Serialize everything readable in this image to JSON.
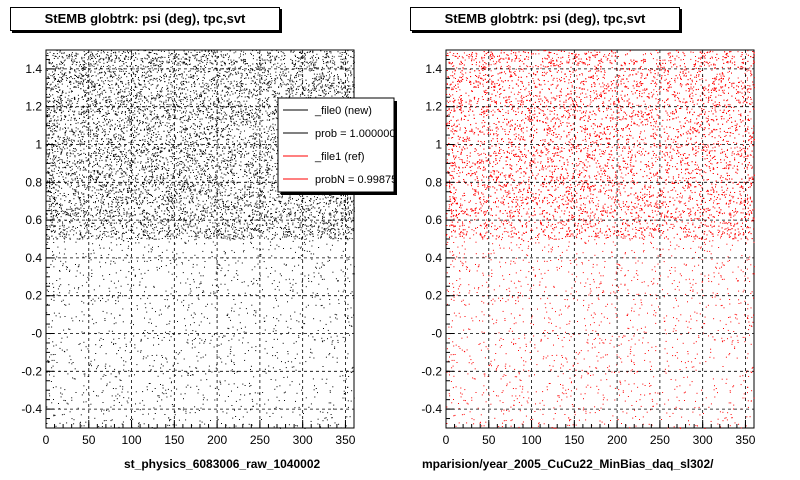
{
  "panels": [
    {
      "title": "StEMB globtrk: psi (deg), tpc,svt",
      "footer": "st_physics_6083006_raw_1040002",
      "marker_color": "#000000",
      "legend": {
        "entries": [
          {
            "label": "_file0 (new)",
            "color": "#000000"
          },
          {
            "label": "prob = 1.000000",
            "color": "#000000"
          },
          {
            "label": "_file1 (ref)",
            "color": "#ff0000"
          },
          {
            "label": "probN = 0.99875",
            "color": "#ff0000"
          }
        ]
      }
    },
    {
      "title": "StEMB globtrk: psi (deg), tpc,svt",
      "footer": "mparision/year_2005_CuCu22_MinBias_daq_sl302/",
      "marker_color": "#ff0000"
    }
  ],
  "chart_data": [
    {
      "type": "scatter",
      "title": "StEMB globtrk: psi (deg), tpc,svt",
      "xlim": [
        0,
        360
      ],
      "ylim": [
        -0.5,
        1.5
      ],
      "x_ticks": [
        0,
        50,
        100,
        150,
        200,
        250,
        300,
        350
      ],
      "y_ticks": [
        -0.4,
        -0.2,
        0,
        0.2,
        0.4,
        0.6,
        0.8,
        1,
        1.2,
        1.4
      ],
      "y_tick_labels": [
        "-0.4",
        "-0.2",
        "-0",
        "0.2",
        "0.4",
        "0.6",
        "0.8",
        "1",
        "1.2",
        "1.4"
      ],
      "grid": true,
      "series": [
        {
          "name": "_file0 (new)",
          "color": "#000000",
          "density_regions": [
            {
              "x": [
                0,
                360
              ],
              "y": [
                0.5,
                1.5
              ],
              "relative_density": "high"
            },
            {
              "x": [
                0,
                360
              ],
              "y": [
                -0.5,
                0.5
              ],
              "relative_density": "low"
            }
          ]
        }
      ],
      "legend_position": "top-right"
    },
    {
      "type": "scatter",
      "title": "StEMB globtrk: psi (deg), tpc,svt",
      "xlim": [
        0,
        360
      ],
      "ylim": [
        -0.5,
        1.5
      ],
      "x_ticks": [
        0,
        50,
        100,
        150,
        200,
        250,
        300,
        350
      ],
      "y_ticks": [
        -0.4,
        -0.2,
        0,
        0.2,
        0.4,
        0.6,
        0.8,
        1,
        1.2,
        1.4
      ],
      "y_tick_labels": [
        "-0.4",
        "-0.2",
        "-0",
        "0.2",
        "0.4",
        "0.6",
        "0.8",
        "1",
        "1.2",
        "1.4"
      ],
      "grid": true,
      "series": [
        {
          "name": "_file1 (ref)",
          "color": "#ff0000",
          "density_regions": [
            {
              "x": [
                0,
                360
              ],
              "y": [
                0.5,
                1.5
              ],
              "relative_density": "high"
            },
            {
              "x": [
                0,
                360
              ],
              "y": [
                -0.5,
                0.5
              ],
              "relative_density": "low"
            }
          ]
        }
      ]
    }
  ]
}
